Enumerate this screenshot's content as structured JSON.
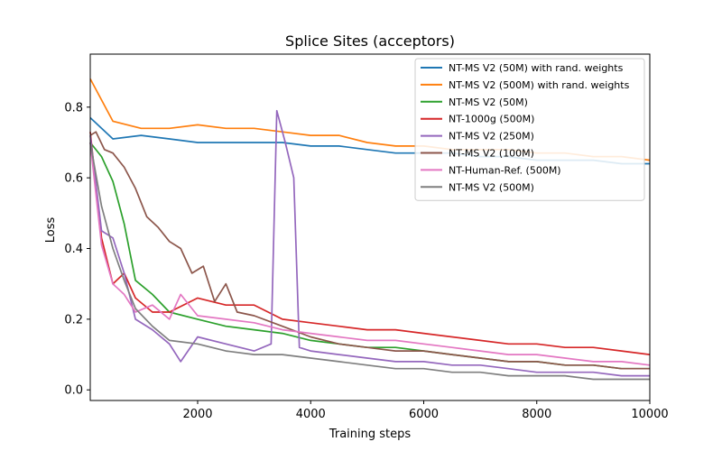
{
  "chart_data": {
    "type": "line",
    "title": "Splice Sites (acceptors)",
    "xlabel": "Training steps",
    "ylabel": "Loss",
    "xlim": [
      100,
      10000
    ],
    "ylim": [
      -0.03,
      0.95
    ],
    "xticks": [
      2000,
      4000,
      6000,
      8000,
      10000
    ],
    "yticks": [
      0.0,
      0.2,
      0.4,
      0.6,
      0.8
    ],
    "grid": false,
    "legend_position": "upper-right",
    "series": [
      {
        "name": "NT-MS V2 (50M) with rand. weights",
        "color": "#1f77b4",
        "x": [
          100,
          500,
          1000,
          1500,
          2000,
          2500,
          3000,
          3500,
          4000,
          4500,
          5000,
          5500,
          6000,
          6500,
          7000,
          7500,
          8000,
          8500,
          9000,
          9500,
          10000
        ],
        "y": [
          0.77,
          0.71,
          0.72,
          0.71,
          0.7,
          0.7,
          0.7,
          0.7,
          0.69,
          0.69,
          0.68,
          0.67,
          0.67,
          0.67,
          0.66,
          0.66,
          0.65,
          0.65,
          0.65,
          0.64,
          0.64
        ]
      },
      {
        "name": "NT-MS V2 (500M) with rand. weights",
        "color": "#ff7f0e",
        "x": [
          100,
          500,
          1000,
          1500,
          2000,
          2500,
          3000,
          3500,
          4000,
          4500,
          5000,
          5500,
          6000,
          6500,
          7000,
          7500,
          8000,
          8500,
          9000,
          9500,
          10000
        ],
        "y": [
          0.88,
          0.76,
          0.74,
          0.74,
          0.75,
          0.74,
          0.74,
          0.73,
          0.72,
          0.72,
          0.7,
          0.69,
          0.69,
          0.68,
          0.68,
          0.68,
          0.67,
          0.67,
          0.66,
          0.66,
          0.65
        ]
      },
      {
        "name": "NT-MS V2 (50M)",
        "color": "#2ca02c",
        "x": [
          100,
          300,
          500,
          700,
          900,
          1200,
          1500,
          2000,
          2500,
          3000,
          3500,
          4000,
          4500,
          5000,
          5500,
          6000,
          6500,
          7000,
          7500,
          8000,
          8500,
          9000,
          9500,
          10000
        ],
        "y": [
          0.7,
          0.66,
          0.59,
          0.47,
          0.31,
          0.27,
          0.22,
          0.2,
          0.18,
          0.17,
          0.16,
          0.14,
          0.13,
          0.12,
          0.12,
          0.11,
          0.1,
          0.09,
          0.08,
          0.08,
          0.07,
          0.07,
          0.06,
          0.06
        ]
      },
      {
        "name": "NT-1000g (500M)",
        "color": "#d62728",
        "x": [
          100,
          300,
          500,
          700,
          900,
          1200,
          1500,
          2000,
          2500,
          3000,
          3500,
          4000,
          4500,
          5000,
          5500,
          6000,
          6500,
          7000,
          7500,
          8000,
          8500,
          9000,
          9500,
          10000
        ],
        "y": [
          0.73,
          0.43,
          0.3,
          0.33,
          0.26,
          0.22,
          0.22,
          0.26,
          0.24,
          0.24,
          0.2,
          0.19,
          0.18,
          0.17,
          0.17,
          0.16,
          0.15,
          0.14,
          0.13,
          0.13,
          0.12,
          0.12,
          0.11,
          0.1
        ]
      },
      {
        "name": "NT-MS V2 (250M)",
        "color": "#9467bd",
        "x": [
          100,
          300,
          500,
          700,
          900,
          1200,
          1500,
          1700,
          2000,
          2500,
          3000,
          3300,
          3400,
          3550,
          3700,
          3800,
          4000,
          4500,
          5000,
          5500,
          6000,
          6500,
          7000,
          7500,
          8000,
          8500,
          9000,
          9500,
          10000
        ],
        "y": [
          0.72,
          0.45,
          0.43,
          0.33,
          0.2,
          0.17,
          0.13,
          0.08,
          0.15,
          0.13,
          0.11,
          0.13,
          0.79,
          0.7,
          0.6,
          0.12,
          0.11,
          0.1,
          0.09,
          0.08,
          0.08,
          0.07,
          0.07,
          0.06,
          0.05,
          0.05,
          0.05,
          0.04,
          0.04
        ]
      },
      {
        "name": "NT-MS V2 (100M)",
        "color": "#8c564b",
        "x": [
          100,
          200,
          350,
          500,
          700,
          900,
          1100,
          1300,
          1500,
          1700,
          1900,
          2100,
          2300,
          2500,
          2700,
          3000,
          3500,
          4000,
          4500,
          5000,
          5500,
          6000,
          6500,
          7000,
          7500,
          8000,
          8500,
          9000,
          9500,
          10000
        ],
        "y": [
          0.72,
          0.73,
          0.68,
          0.67,
          0.63,
          0.57,
          0.49,
          0.46,
          0.42,
          0.4,
          0.33,
          0.35,
          0.25,
          0.3,
          0.22,
          0.21,
          0.18,
          0.15,
          0.13,
          0.12,
          0.11,
          0.11,
          0.1,
          0.09,
          0.08,
          0.08,
          0.07,
          0.07,
          0.06,
          0.06
        ]
      },
      {
        "name": "NT-Human-Ref. (500M)",
        "color": "#e377c2",
        "x": [
          100,
          300,
          500,
          700,
          900,
          1200,
          1500,
          1700,
          2000,
          2500,
          3000,
          3500,
          4000,
          4500,
          5000,
          5500,
          6000,
          6500,
          7000,
          7500,
          8000,
          8500,
          9000,
          9500,
          10000
        ],
        "y": [
          0.7,
          0.41,
          0.3,
          0.27,
          0.22,
          0.24,
          0.2,
          0.27,
          0.21,
          0.2,
          0.19,
          0.17,
          0.16,
          0.15,
          0.14,
          0.14,
          0.13,
          0.12,
          0.11,
          0.1,
          0.1,
          0.09,
          0.08,
          0.08,
          0.07
        ]
      },
      {
        "name": "NT-MS V2 (500M)",
        "color": "#7f7f7f",
        "x": [
          100,
          300,
          500,
          700,
          900,
          1200,
          1500,
          2000,
          2500,
          3000,
          3500,
          4000,
          4500,
          5000,
          5500,
          6000,
          6500,
          7000,
          7500,
          8000,
          8500,
          9000,
          9500,
          10000
        ],
        "y": [
          0.7,
          0.52,
          0.4,
          0.31,
          0.23,
          0.18,
          0.14,
          0.13,
          0.11,
          0.1,
          0.1,
          0.09,
          0.08,
          0.07,
          0.06,
          0.06,
          0.05,
          0.05,
          0.04,
          0.04,
          0.04,
          0.03,
          0.03,
          0.03
        ]
      }
    ]
  }
}
